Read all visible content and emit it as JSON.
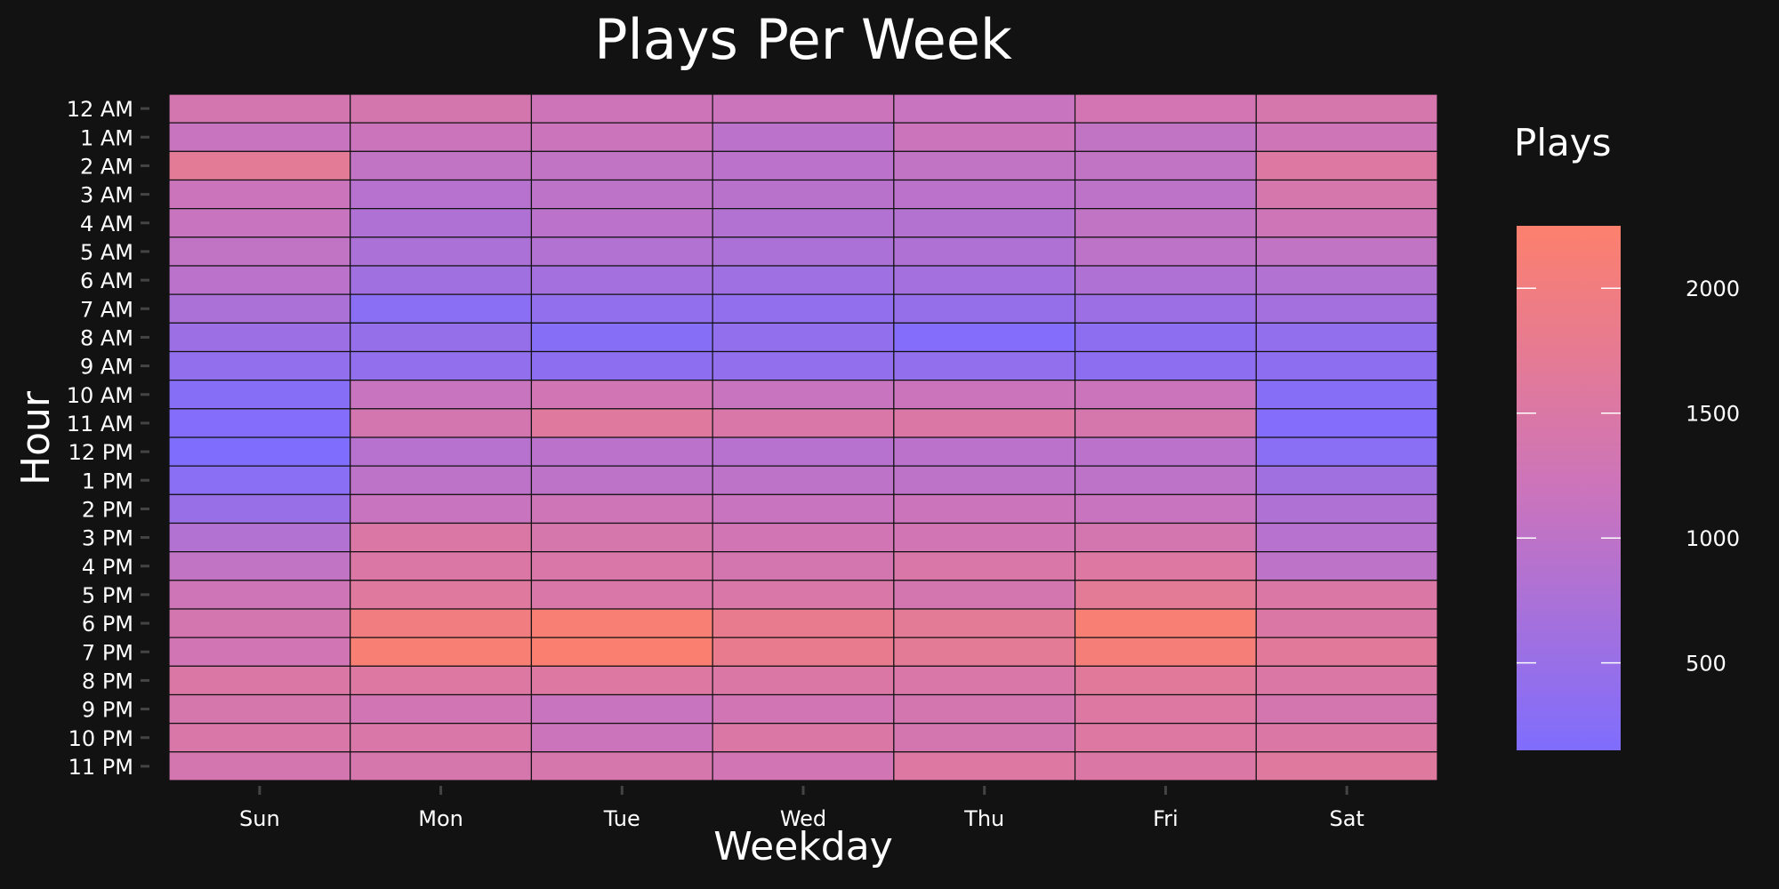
{
  "chart_data": {
    "type": "heatmap",
    "title": "Plays Per Week",
    "xlabel": "Weekday",
    "ylabel": "Hour",
    "x_categories": [
      "Sun",
      "Mon",
      "Tue",
      "Wed",
      "Thu",
      "Fri",
      "Sat"
    ],
    "y_categories": [
      "12 AM",
      "1 AM",
      "2 AM",
      "3 AM",
      "4 AM",
      "5 AM",
      "6 AM",
      "7 AM",
      "8 AM",
      "9 AM",
      "10 AM",
      "11 AM",
      "12 PM",
      "1 PM",
      "2 PM",
      "3 PM",
      "4 PM",
      "5 PM",
      "6 PM",
      "7 PM",
      "8 PM",
      "9 PM",
      "10 PM",
      "11 PM"
    ],
    "values": [
      [
        1350,
        1380,
        1230,
        1180,
        1150,
        1320,
        1400
      ],
      [
        1150,
        1200,
        1200,
        950,
        1200,
        1050,
        1250
      ],
      [
        1700,
        1050,
        1050,
        950,
        1050,
        1050,
        1550
      ],
      [
        1200,
        900,
        1000,
        930,
        950,
        1000,
        1400
      ],
      [
        1150,
        800,
        950,
        850,
        870,
        1050,
        1250
      ],
      [
        1050,
        750,
        850,
        750,
        800,
        1000,
        1050
      ],
      [
        950,
        600,
        650,
        580,
        650,
        800,
        850
      ],
      [
        750,
        300,
        400,
        400,
        450,
        550,
        650
      ],
      [
        550,
        450,
        250,
        400,
        200,
        350,
        400
      ],
      [
        400,
        400,
        350,
        400,
        400,
        350,
        350
      ],
      [
        250,
        1150,
        1300,
        1150,
        1200,
        1200,
        250
      ],
      [
        200,
        1350,
        1600,
        1450,
        1500,
        1400,
        200
      ],
      [
        150,
        900,
        950,
        900,
        950,
        950,
        300
      ],
      [
        300,
        1000,
        1000,
        1000,
        1000,
        1000,
        600
      ],
      [
        500,
        1150,
        1250,
        1150,
        1200,
        1150,
        800
      ],
      [
        850,
        1500,
        1400,
        1300,
        1300,
        1350,
        900
      ],
      [
        1050,
        1500,
        1450,
        1350,
        1450,
        1550,
        1000
      ],
      [
        1250,
        1600,
        1450,
        1450,
        1350,
        1700,
        1500
      ],
      [
        1350,
        2000,
        2150,
        1800,
        1700,
        2150,
        1500
      ],
      [
        1300,
        2150,
        2200,
        1800,
        1700,
        2100,
        1650
      ],
      [
        1500,
        1550,
        1550,
        1500,
        1450,
        1650,
        1500
      ],
      [
        1400,
        1300,
        1150,
        1300,
        1350,
        1550,
        1350
      ],
      [
        1450,
        1450,
        1200,
        1500,
        1350,
        1550,
        1500
      ],
      [
        1350,
        1400,
        1400,
        1300,
        1550,
        1500,
        1600
      ]
    ],
    "colorbar": {
      "title": "Plays",
      "min": 150,
      "max": 2250,
      "ticks": [
        500,
        1000,
        1500,
        2000
      ],
      "tick_labels": [
        "500",
        "1000",
        "1500",
        "2000"
      ],
      "low_color": "#7f6dfd",
      "mid_color": "#cc74bb",
      "high_color": "#fd806d"
    },
    "legend_position": "right",
    "background_color": "#121212",
    "cell_border_color": "#121212",
    "grid": false
  }
}
